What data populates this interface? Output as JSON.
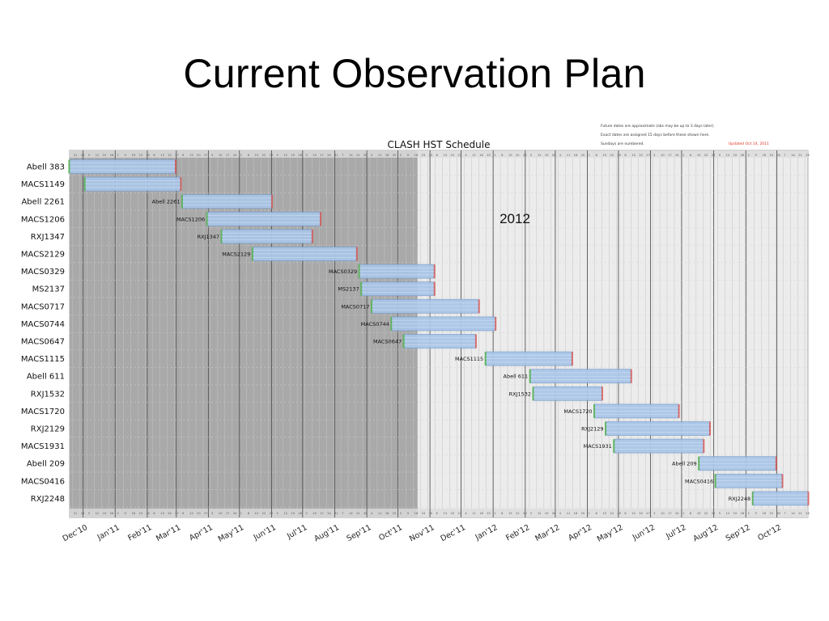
{
  "slide": {
    "title": "Current Observation Plan",
    "annotation": "2012"
  },
  "chart_data": {
    "type": "gantt",
    "title": "CLASH HST Schedule",
    "notes": [
      "Future dates are approximate (obs may be up to 3 days later).",
      "Exact dates are assigned 15 days before these shown here.",
      "Sundays are numbered."
    ],
    "updated": "Updated Oct 14, 2011",
    "x_range": [
      "2010-11-18",
      "2012-10-31"
    ],
    "completed_until": "2011-10-20",
    "month_labels": [
      {
        "label": "Dec'10",
        "date": "2010-12-01"
      },
      {
        "label": "Jan'11",
        "date": "2011-01-01"
      },
      {
        "label": "Feb'11",
        "date": "2011-02-01"
      },
      {
        "label": "Mar'11",
        "date": "2011-03-01"
      },
      {
        "label": "Apr'11",
        "date": "2011-04-01"
      },
      {
        "label": "May'11",
        "date": "2011-05-01"
      },
      {
        "label": "Jun'11",
        "date": "2011-06-01"
      },
      {
        "label": "Jul'11",
        "date": "2011-07-01"
      },
      {
        "label": "Aug'11",
        "date": "2011-08-01"
      },
      {
        "label": "Sep'11",
        "date": "2011-09-01"
      },
      {
        "label": "Oct'11",
        "date": "2011-10-01"
      },
      {
        "label": "Nov'11",
        "date": "2011-11-01"
      },
      {
        "label": "Dec'11",
        "date": "2011-12-01"
      },
      {
        "label": "Jan'12",
        "date": "2012-01-01"
      },
      {
        "label": "Feb'12",
        "date": "2012-02-01"
      },
      {
        "label": "Mar'12",
        "date": "2012-03-01"
      },
      {
        "label": "Apr'12",
        "date": "2012-04-01"
      },
      {
        "label": "May'12",
        "date": "2012-05-01"
      },
      {
        "label": "Jun'12",
        "date": "2012-06-01"
      },
      {
        "label": "Jul'12",
        "date": "2012-07-01"
      },
      {
        "label": "Aug'12",
        "date": "2012-08-01"
      },
      {
        "label": "Sep'12",
        "date": "2012-09-01"
      },
      {
        "label": "Oct'12",
        "date": "2012-10-01"
      }
    ],
    "targets": [
      {
        "name": "Abell 383",
        "label": "",
        "start": "2010-11-18",
        "end": "2011-02-28"
      },
      {
        "name": "MACS1149",
        "label": "",
        "start": "2010-12-03",
        "end": "2011-03-05"
      },
      {
        "name": "Abell 2261",
        "label": "Abell 2261",
        "start": "2011-03-07",
        "end": "2011-06-01"
      },
      {
        "name": "MACS1206",
        "label": "MACS1206",
        "start": "2011-03-31",
        "end": "2011-07-18"
      },
      {
        "name": "RXJ1347",
        "label": "RXJ1347",
        "start": "2011-04-14",
        "end": "2011-07-10"
      },
      {
        "name": "MACS2129",
        "label": "MACS2129",
        "start": "2011-05-14",
        "end": "2011-08-22"
      },
      {
        "name": "MACS0329",
        "label": "MACS0329",
        "start": "2011-08-25",
        "end": "2011-11-05"
      },
      {
        "name": "MS2137",
        "label": "MS2137",
        "start": "2011-08-27",
        "end": "2011-11-05"
      },
      {
        "name": "MACS0717",
        "label": "MACS0717",
        "start": "2011-09-06",
        "end": "2011-12-18"
      },
      {
        "name": "MACS0744",
        "label": "MACS0744",
        "start": "2011-09-25",
        "end": "2012-01-03"
      },
      {
        "name": "MACS0647",
        "label": "MACS0647",
        "start": "2011-10-07",
        "end": "2011-12-15"
      },
      {
        "name": "MACS1115",
        "label": "MACS1115",
        "start": "2011-12-25",
        "end": "2012-03-17"
      },
      {
        "name": "Abell 611",
        "label": "Abell 611",
        "start": "2012-02-06",
        "end": "2012-05-13"
      },
      {
        "name": "RXJ1532",
        "label": "RXJ1532",
        "start": "2012-02-09",
        "end": "2012-04-15"
      },
      {
        "name": "MACS1720",
        "label": "MACS1720",
        "start": "2012-04-08",
        "end": "2012-06-28"
      },
      {
        "name": "RXJ2129",
        "label": "RXJ2129",
        "start": "2012-04-19",
        "end": "2012-07-28"
      },
      {
        "name": "MACS1931",
        "label": "MACS1931",
        "start": "2012-04-27",
        "end": "2012-07-22"
      },
      {
        "name": "Abell 209",
        "label": "Abell 209",
        "start": "2012-07-18",
        "end": "2012-09-30"
      },
      {
        "name": "MACS0416",
        "label": "MACS0416",
        "start": "2012-08-03",
        "end": "2012-10-06"
      },
      {
        "name": "RXJ2248",
        "label": "RXJ2248",
        "start": "2012-09-08",
        "end": "2012-10-31"
      }
    ],
    "colors": {
      "bar": "#a9c6e8",
      "bar_edge": "#7b9fcc",
      "completed_shade": "#a9a9a9",
      "future_bg": "#ececec",
      "updated_text": "#e03020"
    }
  }
}
